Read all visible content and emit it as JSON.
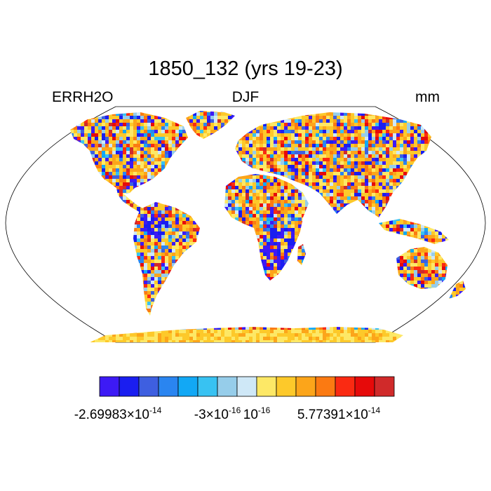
{
  "title": "1850_132 (yrs 19-23)",
  "left_label": "ERRH2O",
  "center_label": "DJF",
  "right_label": "mm",
  "colorbar": {
    "colors": [
      "#3d1af5",
      "#1a1ef0",
      "#3e5fe0",
      "#2a85f0",
      "#12a8f5",
      "#38c2f2",
      "#96cdea",
      "#cfe8f7",
      "#fde866",
      "#fdc92a",
      "#fca51a",
      "#fb7a12",
      "#fa2a12",
      "#e60a0a",
      "#d02a2a"
    ],
    "labels": [
      {
        "mantissa": "-2.69983",
        "exponent": "-14",
        "times": "×",
        "base": "10"
      },
      {
        "mantissa": "-3",
        "exponent": "-16",
        "times": "×",
        "base": "10"
      },
      {
        "mantissa": "",
        "exponent": "-16",
        "times": "",
        "base": "10"
      },
      {
        "mantissa": "5.77391",
        "exponent": "-14",
        "times": "×",
        "base": "10"
      }
    ]
  },
  "map": {
    "projection": "Robinson",
    "land_fill": "speckled",
    "ocean_color": "#ffffff",
    "coastline_color": "#000000"
  }
}
